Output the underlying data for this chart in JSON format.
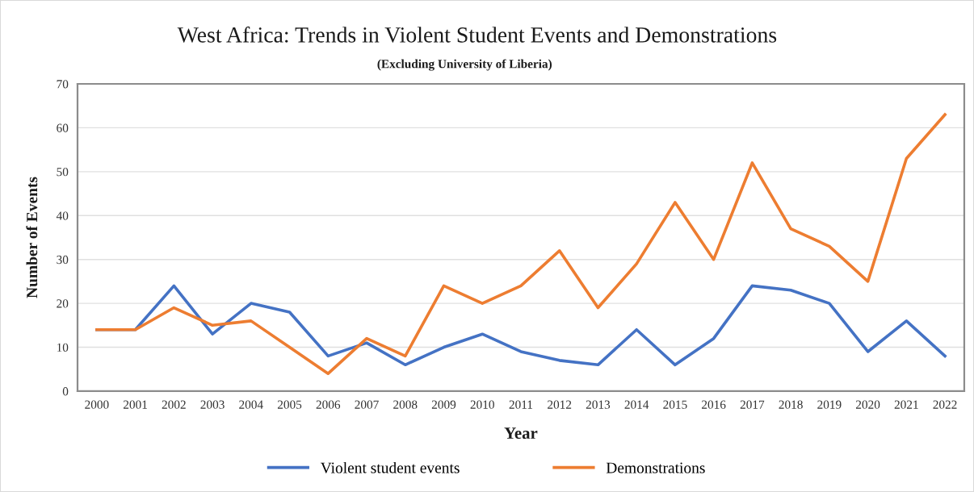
{
  "chart_data": {
    "type": "line",
    "title": "West Africa: Trends in Violent Student Events and Demonstrations",
    "subtitle": "(Excluding University of Liberia)",
    "xlabel": "Year",
    "ylabel": "Number of Events",
    "categories": [
      "2000",
      "2001",
      "2002",
      "2003",
      "2004",
      "2005",
      "2006",
      "2007",
      "2008",
      "2009",
      "2010",
      "2011",
      "2012",
      "2013",
      "2014",
      "2015",
      "2016",
      "2017",
      "2018",
      "2019",
      "2020",
      "2021",
      "2022"
    ],
    "series": [
      {
        "name": "Violent student events",
        "color": "#4472c4",
        "values": [
          14,
          14,
          24,
          13,
          20,
          18,
          8,
          11,
          6,
          10,
          13,
          9,
          7,
          6,
          14,
          6,
          12,
          24,
          23,
          20,
          9,
          16,
          8
        ]
      },
      {
        "name": "Demonstrations",
        "color": "#ed7d31",
        "values": [
          14,
          14,
          19,
          15,
          16,
          10,
          4,
          12,
          8,
          24,
          20,
          24,
          32,
          19,
          29,
          43,
          30,
          52,
          37,
          33,
          25,
          53,
          63
        ]
      }
    ],
    "ylim": [
      0,
      70
    ],
    "yticks": [
      0,
      10,
      20,
      30,
      40,
      50,
      60,
      70
    ],
    "grid": "y",
    "legend": "bottom",
    "marker": "none",
    "line_style": "solid"
  }
}
